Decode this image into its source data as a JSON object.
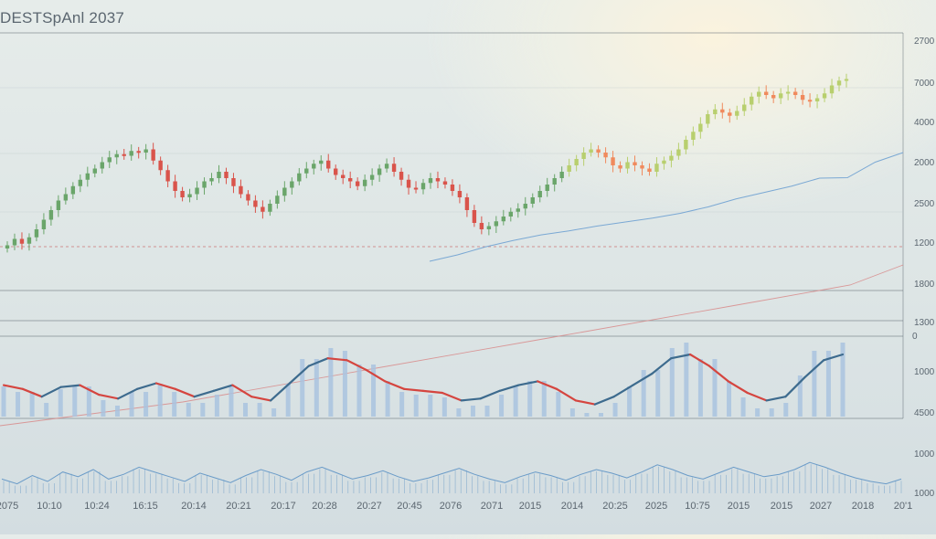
{
  "chart_data": {
    "type": "candlestick",
    "title": "DESTSpAnl 2037",
    "x_tick_labels": [
      "2075",
      "10:10",
      "10:24",
      "16:15",
      "20:14",
      "20:21",
      "20:17",
      "20:28",
      "20:27",
      "20:45",
      "2076",
      "2071",
      "2015",
      "2014",
      "20:25",
      "2025",
      "10:75",
      "2015",
      "2015",
      "2027",
      "2018",
      "20'1"
    ],
    "price_axis_labels": [
      "2700",
      "7000",
      "4000",
      "2000",
      "2500",
      "1200",
      "1800",
      "1300"
    ],
    "indicator_axis_labels": [
      "0",
      "1000",
      "4500"
    ],
    "volume_axis_labels": [
      "1000",
      "1000"
    ],
    "colors": {
      "up": "#6aa56a",
      "down": "#d9544b",
      "up_late": "#b8cf6e",
      "down_late": "#f08a5d",
      "ma_line": "#7aa8d4",
      "trend_line": "#d88a8a",
      "reference_line": "#cf8a8a",
      "histogram": "#a9c3df",
      "oscillator_up": "#3d6b8e",
      "oscillator_down": "#d5453f",
      "volume_line": "#6a9bc8",
      "panel_border": "#5f6a72"
    },
    "price_close_series": [
      1480,
      1520,
      1490,
      1530,
      1580,
      1640,
      1700,
      1760,
      1800,
      1850,
      1890,
      1930,
      1960,
      2000,
      2030,
      2050,
      2040,
      2070,
      2060,
      2080,
      2010,
      1950,
      1880,
      1820,
      1780,
      1800,
      1840,
      1880,
      1900,
      1940,
      1900,
      1850,
      1800,
      1760,
      1720,
      1690,
      1740,
      1790,
      1840,
      1880,
      1930,
      1960,
      1990,
      2010,
      1960,
      1920,
      1900,
      1880,
      1850,
      1890,
      1920,
      1960,
      1990,
      1940,
      1890,
      1840,
      1830,
      1870,
      1900,
      1880,
      1860,
      1820,
      1780,
      1700,
      1620,
      1580,
      1600,
      1630,
      1660,
      1690,
      1710,
      1740,
      1780,
      1820,
      1860,
      1900,
      1940,
      1980,
      2020,
      2060,
      2080,
      2060,
      2030,
      1980,
      1960,
      2000,
      1980,
      1960,
      1940,
      1990,
      2010,
      2040,
      2080,
      2140,
      2190,
      2240,
      2300,
      2330,
      2310,
      2290,
      2320,
      2360,
      2410,
      2440,
      2420,
      2400,
      2430,
      2440,
      2420,
      2390,
      2380,
      2400,
      2430,
      2480,
      2510,
      2520
    ],
    "moving_average": [
      1380,
      1420,
      1470,
      1510,
      1545,
      1570,
      1600,
      1625,
      1650,
      1680,
      1720,
      1770,
      1810,
      1850,
      1900,
      1960,
      2000,
      2060
    ],
    "oscillator_series": [
      0.2,
      0.1,
      -0.1,
      0.15,
      0.2,
      -0.05,
      -0.15,
      0.1,
      0.25,
      0.1,
      -0.1,
      0.05,
      0.2,
      -0.1,
      -0.2,
      0.25,
      0.7,
      0.9,
      0.85,
      0.6,
      0.3,
      0.1,
      0.05,
      0.0,
      -0.2,
      -0.15,
      0.05,
      0.2,
      0.3,
      0.1,
      -0.2,
      -0.3,
      -0.1,
      0.2,
      0.5,
      0.9,
      1.0,
      0.7,
      0.3,
      0.0,
      -0.2,
      -0.1,
      0.4,
      0.85,
      1.0
    ],
    "volume_series": [
      52,
      48,
      55,
      50,
      58,
      54,
      60,
      52,
      56,
      62,
      58,
      54,
      50,
      57,
      53,
      49,
      55,
      60,
      56,
      51,
      58,
      62,
      57,
      52,
      55,
      59,
      54,
      50,
      53,
      57,
      61,
      56,
      52,
      49,
      54,
      58,
      55,
      51,
      56,
      60,
      57,
      53,
      58,
      64,
      60,
      55,
      52,
      57,
      62,
      58,
      54,
      56,
      60,
      66,
      62,
      57,
      53,
      50,
      48,
      52
    ]
  }
}
